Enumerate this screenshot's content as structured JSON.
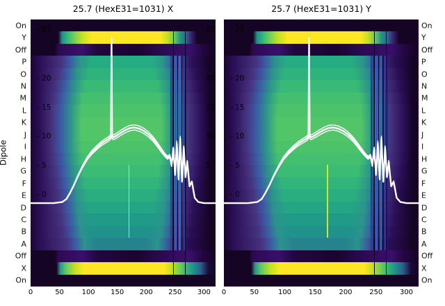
{
  "titles": {
    "left": "25.7 (HexE31=1031) X",
    "right": "25.7 (HexE31=1031) Y"
  },
  "axes": {
    "dipole_label": "Dipole",
    "categories": [
      "On",
      "Y",
      "Off",
      "P",
      "O",
      "N",
      "M",
      "L",
      "K",
      "J",
      "I",
      "H",
      "G",
      "F",
      "E",
      "D",
      "C",
      "B",
      "A",
      "Off",
      "X",
      "On"
    ],
    "x_ticks": [
      0,
      50,
      100,
      150,
      200,
      250,
      300
    ],
    "inner_y_ticks": [
      {
        "label": "- 25",
        "f": 0.036
      },
      {
        "label": "- 20",
        "f": 0.221
      },
      {
        "label": "- 15",
        "f": 0.33
      },
      {
        "label": "- 10",
        "f": 0.437
      },
      {
        "label": "- 5",
        "f": 0.546
      },
      {
        "label": "- 0",
        "f": 0.655
      }
    ],
    "right_edge_ticks": [
      {
        "label": "25",
        "f": 0.036
      },
      {
        "label": "20",
        "f": 0.221
      },
      {
        "label": "15",
        "f": 0.33
      },
      {
        "label": "10",
        "f": 0.437
      },
      {
        "label": "5",
        "f": 0.546
      }
    ]
  },
  "chart_data": {
    "type": "heatmap",
    "colormap": "viridis",
    "plots": [
      {
        "title": "25.7 (HexE31=1031) X"
      },
      {
        "title": "25.7 (HexE31=1031) Y"
      }
    ],
    "y_categories": [
      "On",
      "Y",
      "Off",
      "P",
      "O",
      "N",
      "M",
      "L",
      "K",
      "J",
      "I",
      "H",
      "G",
      "F",
      "E",
      "D",
      "C",
      "B",
      "A",
      "Off",
      "X",
      "On"
    ],
    "x_range": [
      0,
      320
    ],
    "value_ticks": [
      25,
      20,
      15,
      10,
      5,
      0
    ],
    "colors": {
      "dark": "#150423",
      "purple": "#2b0f57",
      "blue": "#365c8d",
      "teal": "#2c938c",
      "green": "#4ac16d",
      "yellow": "#fde725",
      "curve": "#ffffff"
    },
    "row_gradients": {
      "dark": [
        [
          0,
          "#150423"
        ],
        [
          100,
          "#150423"
        ]
      ],
      "bright": [
        [
          0,
          "#150423"
        ],
        [
          15,
          "#150423"
        ],
        [
          17,
          "#21918c"
        ],
        [
          20,
          "#35b779"
        ],
        [
          24,
          "#7ad151"
        ],
        [
          28,
          "#c8e020"
        ],
        [
          33,
          "#fde725"
        ],
        [
          70,
          "#fde725"
        ],
        [
          74,
          "#c8e020"
        ],
        [
          78,
          "#5ec962"
        ],
        [
          81,
          "#21918c"
        ],
        [
          84,
          "#31688e"
        ],
        [
          87,
          "#3b1f6e"
        ],
        [
          90,
          "#150423"
        ],
        [
          100,
          "#150423"
        ]
      ],
      "bright2": [
        [
          0,
          "#150423"
        ],
        [
          14,
          "#150423"
        ],
        [
          16,
          "#2c938c"
        ],
        [
          19,
          "#5ec962"
        ],
        [
          24,
          "#c8e020"
        ],
        [
          29,
          "#fde725"
        ],
        [
          72,
          "#fde725"
        ],
        [
          76,
          "#c8e020"
        ],
        [
          80,
          "#7ad151"
        ],
        [
          84,
          "#35b779"
        ],
        [
          88,
          "#21918c"
        ],
        [
          92,
          "#2d5f8a"
        ],
        [
          96,
          "#1b0b3a"
        ],
        [
          100,
          "#150423"
        ]
      ],
      "off": [
        [
          0,
          "#150423"
        ],
        [
          13,
          "#150423"
        ],
        [
          15,
          "#2d0a54"
        ],
        [
          28,
          "#3a0f6b"
        ],
        [
          36,
          "#22063f"
        ],
        [
          58,
          "#1b042f"
        ],
        [
          72,
          "#2d0a54"
        ],
        [
          86,
          "#3a0f6b"
        ],
        [
          93,
          "#22063f"
        ],
        [
          100,
          "#150423"
        ]
      ]
    },
    "rows": [
      {
        "label": "On",
        "type": "dark"
      },
      {
        "label": "Y",
        "type": "bright"
      },
      {
        "label": "Off",
        "type": "off"
      },
      {
        "label": "P",
        "type": "bump",
        "peak": "#25ac82",
        "spread": 0.82
      },
      {
        "label": "O",
        "type": "bump",
        "peak": "#2eb37c",
        "spread": 0.88
      },
      {
        "label": "N",
        "type": "bump",
        "peak": "#38ba76",
        "spread": 0.93
      },
      {
        "label": "M",
        "type": "bump",
        "peak": "#44bf70",
        "spread": 0.97
      },
      {
        "label": "L",
        "type": "bump",
        "peak": "#4cc26a",
        "spread": 1.0
      },
      {
        "label": "K",
        "type": "bump",
        "peak": "#52c569",
        "spread": 1.0
      },
      {
        "label": "J",
        "type": "bump",
        "peak": "#52c569",
        "spread": 1.0
      },
      {
        "label": "I",
        "type": "bump",
        "peak": "#4cc26a",
        "spread": 1.0
      },
      {
        "label": "H",
        "type": "bump",
        "peak": "#44bf70",
        "spread": 0.98
      },
      {
        "label": "G",
        "type": "bump",
        "peak": "#3bbb74",
        "spread": 0.95
      },
      {
        "label": "F",
        "type": "bump",
        "peak": "#32b57a",
        "spread": 0.92
      },
      {
        "label": "E",
        "type": "bump",
        "peak": "#2aae80",
        "spread": 0.88
      },
      {
        "label": "D",
        "type": "bump",
        "peak": "#24a585",
        "spread": 0.85
      },
      {
        "label": "C",
        "type": "bump",
        "peak": "#219a89",
        "spread": 0.82
      },
      {
        "label": "B",
        "type": "bump",
        "peak": "#21918c",
        "spread": 0.78
      },
      {
        "label": "A",
        "type": "bump",
        "peak": "#26838e",
        "spread": 0.72
      },
      {
        "label": "Off",
        "type": "off"
      },
      {
        "label": "X",
        "type": "bright2"
      },
      {
        "label": "On",
        "type": "dark"
      }
    ],
    "stripes": [
      {
        "f": 0.53,
        "w": 0.004,
        "color": "#d8e621",
        "r0": 12,
        "r1": 17
      },
      {
        "f": 0.755,
        "w": 0.008,
        "color": "#2a3f9e",
        "r0": 3,
        "r1": 18
      },
      {
        "f": 0.768,
        "w": 0.004,
        "color": "#0c0a28",
        "r0": 3,
        "r1": 18
      },
      {
        "f": 0.778,
        "w": 0.01,
        "color": "#3358c4",
        "r0": 3,
        "r1": 18
      },
      {
        "f": 0.793,
        "w": 0.004,
        "color": "#0c0a28",
        "r0": 3,
        "r1": 18
      },
      {
        "f": 0.802,
        "w": 0.009,
        "color": "#2e6db0",
        "r0": 3,
        "r1": 18
      },
      {
        "f": 0.816,
        "w": 0.005,
        "color": "#141150",
        "r0": 3,
        "r1": 18
      },
      {
        "f": 0.826,
        "w": 0.007,
        "color": "#2a3f9e",
        "r0": 3,
        "r1": 18
      },
      {
        "f": 0.838,
        "w": 0.004,
        "color": "#1a1b66",
        "r0": 3,
        "r1": 18
      },
      {
        "f": 0.772,
        "w": 0.0025,
        "color": "#0a0820",
        "r0": 0,
        "r1": 21
      },
      {
        "f": 0.833,
        "w": 0.0025,
        "color": "#0a0820",
        "r0": 0,
        "r1": 21
      }
    ],
    "overlay_curve": {
      "color": "#ffffff",
      "x": [
        0,
        40,
        55,
        62,
        68,
        75,
        82,
        90,
        98,
        106,
        114,
        122,
        128,
        133,
        137,
        139,
        140,
        141,
        143,
        147,
        152,
        158,
        165,
        172,
        180,
        188,
        196,
        204,
        212,
        219,
        226,
        232,
        237,
        241,
        244,
        247,
        250,
        253,
        256,
        259,
        262,
        265,
        268,
        271,
        275,
        279,
        284,
        290,
        300,
        320
      ],
      "v": [
        -1.5,
        -1.5,
        -1.3,
        -0.8,
        0.2,
        1.6,
        3.2,
        4.8,
        6.2,
        7.2,
        8.0,
        8.7,
        9.1,
        9.4,
        9.7,
        10.0,
        26.5,
        10.0,
        9.8,
        10.0,
        10.3,
        10.7,
        11.1,
        11.4,
        11.5,
        11.3,
        10.9,
        10.3,
        9.5,
        8.6,
        7.6,
        6.8,
        6.3,
        6.6,
        5.0,
        7.8,
        3.4,
        8.8,
        2.6,
        9.6,
        2.2,
        8.0,
        3.0,
        5.6,
        1.4,
        2.2,
        -0.6,
        -1.3,
        -1.5,
        -1.5
      ]
    }
  }
}
